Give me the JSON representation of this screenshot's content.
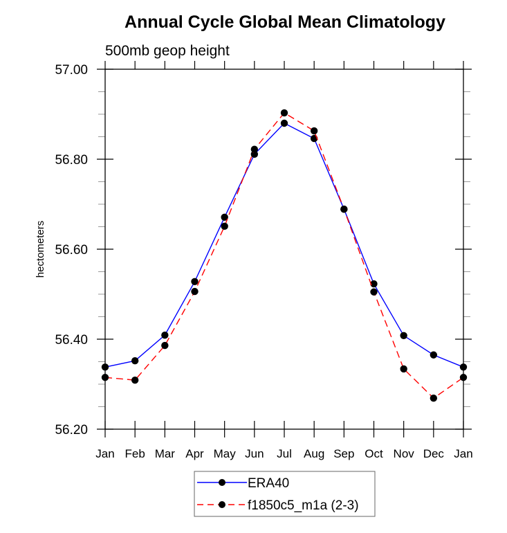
{
  "chart_data": {
    "type": "line",
    "title": "Annual Cycle Global Mean Climatology",
    "subtitle": "500mb geop height",
    "xlabel": "",
    "ylabel": "hectometers",
    "categories": [
      "Jan",
      "Feb",
      "Mar",
      "Apr",
      "May",
      "Jun",
      "Jul",
      "Aug",
      "Sep",
      "Oct",
      "Nov",
      "Dec",
      "Jan"
    ],
    "ylim": [
      56.2,
      57.0
    ],
    "yticks": [
      {
        "value": 56.2,
        "label": "56.20"
      },
      {
        "value": 56.4,
        "label": "56.40"
      },
      {
        "value": 56.6,
        "label": "56.60"
      },
      {
        "value": 56.8,
        "label": "56.80"
      },
      {
        "value": 57.0,
        "label": "57.00"
      }
    ],
    "yminor_step": 0.05,
    "grid": false,
    "legend_position": "bottom-center",
    "series": [
      {
        "name": "ERA40",
        "color": "#0000ff",
        "dash": "solid",
        "marker": "filled-circle",
        "marker_color": "#000000",
        "values": [
          56.338,
          56.352,
          56.409,
          56.528,
          56.671,
          56.811,
          56.88,
          56.846,
          56.689,
          56.523,
          56.408,
          56.365,
          56.338
        ]
      },
      {
        "name": "f1850c5_m1a (2-3)",
        "color": "#ff0000",
        "dash": "dashed",
        "marker": "filled-circle",
        "marker_color": "#000000",
        "values": [
          56.315,
          56.309,
          56.386,
          56.506,
          56.651,
          56.822,
          56.903,
          56.863,
          56.689,
          56.505,
          56.334,
          56.269,
          56.315
        ]
      }
    ]
  }
}
